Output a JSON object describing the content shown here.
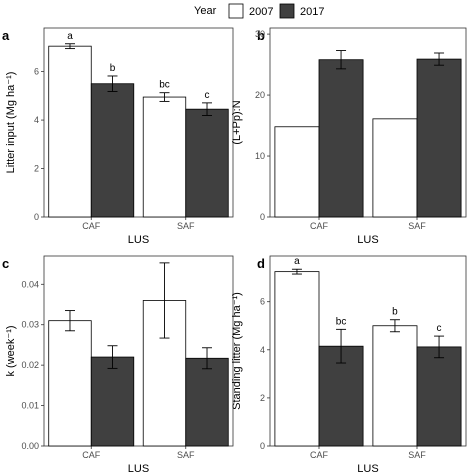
{
  "legend": {
    "title": "Year",
    "entries": [
      {
        "label": "2007",
        "color": "#ffffff"
      },
      {
        "label": "2017",
        "color": "#404040"
      }
    ]
  },
  "chart_data": [
    {
      "panel": "a",
      "type": "bar",
      "categories": [
        "CAF",
        "SAF"
      ],
      "xlabel": "LUS",
      "ylabel": "Litter input (Mg ha⁻¹)",
      "ylim": [
        0,
        7.8
      ],
      "yticks": [
        0,
        2,
        4,
        6
      ],
      "grid": false,
      "series": [
        {
          "name": "2007",
          "values": [
            7.05,
            4.95
          ],
          "errors": [
            0.1,
            0.18
          ],
          "labels": [
            "a",
            "bc"
          ]
        },
        {
          "name": "2017",
          "values": [
            5.5,
            4.45
          ],
          "errors": [
            0.32,
            0.26
          ],
          "labels": [
            "b",
            "c"
          ]
        }
      ]
    },
    {
      "panel": "b",
      "type": "bar",
      "categories": [
        "CAF",
        "SAF"
      ],
      "xlabel": "LUS",
      "ylabel": "(L+Pp):N",
      "ylim": [
        0,
        31
      ],
      "yticks": [
        0,
        10,
        20,
        30
      ],
      "grid": false,
      "series": [
        {
          "name": "2007",
          "values": [
            14.8,
            16.1
          ],
          "errors": [
            null,
            null
          ],
          "labels": [
            "",
            ""
          ]
        },
        {
          "name": "2017",
          "values": [
            25.8,
            25.9
          ],
          "errors": [
            1.5,
            1.0
          ],
          "labels": [
            "",
            ""
          ]
        }
      ]
    },
    {
      "panel": "c",
      "type": "bar",
      "categories": [
        "CAF",
        "SAF"
      ],
      "xlabel": "LUS",
      "ylabel": "k (week⁻¹)",
      "ylim": [
        0,
        0.047
      ],
      "yticks": [
        0.0,
        0.01,
        0.02,
        0.03,
        0.04
      ],
      "ytick_labels": [
        "0.00",
        "0.01",
        "0.02",
        "0.03",
        "0.04"
      ],
      "grid": false,
      "series": [
        {
          "name": "2007",
          "values": [
            0.031,
            0.036
          ],
          "errors": [
            0.0025,
            0.0093
          ],
          "labels": [
            "",
            ""
          ]
        },
        {
          "name": "2017",
          "values": [
            0.022,
            0.0217
          ],
          "errors": [
            0.0028,
            0.0026
          ],
          "labels": [
            "",
            ""
          ]
        }
      ]
    },
    {
      "panel": "d",
      "type": "bar",
      "categories": [
        "CAF",
        "SAF"
      ],
      "xlabel": "LUS",
      "ylabel": "Standing litter (Mg ha⁻¹)",
      "ylim": [
        0,
        7.9
      ],
      "yticks": [
        0,
        2,
        4,
        6
      ],
      "grid": false,
      "series": [
        {
          "name": "2007",
          "values": [
            7.25,
            5.0
          ],
          "errors": [
            0.1,
            0.25
          ],
          "labels": [
            "a",
            "b"
          ]
        },
        {
          "name": "2017",
          "values": [
            4.15,
            4.12
          ],
          "errors": [
            0.7,
            0.45
          ],
          "labels": [
            "bc",
            "c"
          ]
        }
      ]
    }
  ]
}
